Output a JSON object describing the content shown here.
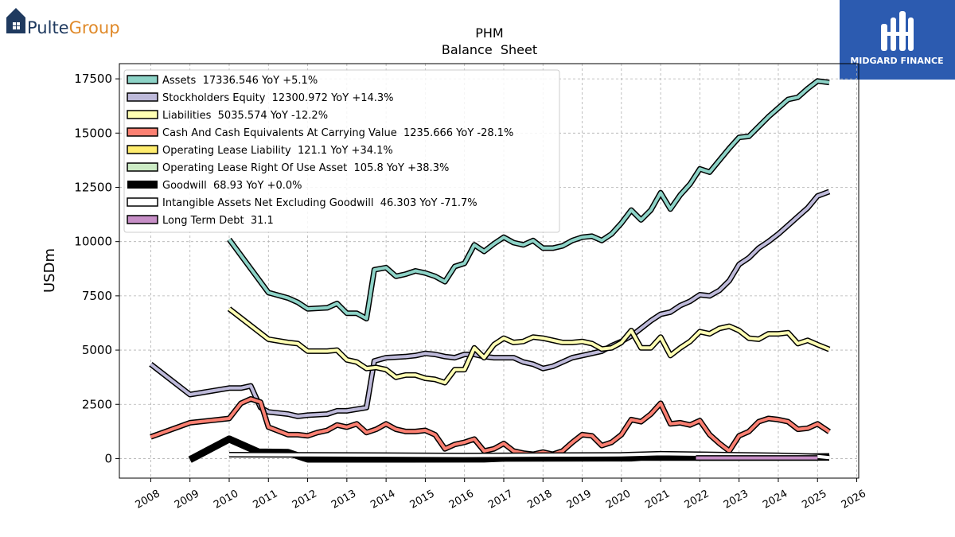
{
  "branding": {
    "left_logo_text_a": "Pulte",
    "left_logo_text_b": "Group",
    "left_logo_color_a": "#1f3a5f",
    "left_logo_color_b": "#e08a2a",
    "right_logo_text": "MIDGARD FINANCE",
    "right_logo_bg": "#2c5bb0"
  },
  "chart_data": {
    "type": "line",
    "title": "PHM",
    "subtitle": "Balance  Sheet",
    "ylabel": "USDm",
    "xlabel": "",
    "xlim": [
      2007.2,
      2026.05
    ],
    "ylim": [
      -900,
      18200
    ],
    "xticks": [
      2008,
      2009,
      2010,
      2011,
      2012,
      2013,
      2014,
      2015,
      2016,
      2017,
      2018,
      2019,
      2020,
      2021,
      2022,
      2023,
      2024,
      2025,
      2026
    ],
    "yticks": [
      0,
      2500,
      5000,
      7500,
      10000,
      12500,
      15000,
      17500
    ],
    "grid": true,
    "legend_position": "top-left",
    "series": [
      {
        "name": "Assets",
        "legend": "Assets  17336.546 YoY +5.1%",
        "color": "#8dd3c7",
        "points": [
          [
            2010,
            10100
          ],
          [
            2011,
            7650
          ],
          [
            2011.5,
            7400
          ],
          [
            2011.75,
            7200
          ],
          [
            2012,
            6900
          ],
          [
            2012.5,
            6950
          ],
          [
            2012.75,
            7150
          ],
          [
            2013,
            6700
          ],
          [
            2013.25,
            6700
          ],
          [
            2013.5,
            6450
          ],
          [
            2013.7,
            8700
          ],
          [
            2014,
            8800
          ],
          [
            2014.25,
            8400
          ],
          [
            2014.5,
            8500
          ],
          [
            2014.75,
            8650
          ],
          [
            2015,
            8550
          ],
          [
            2015.25,
            8400
          ],
          [
            2015.5,
            8150
          ],
          [
            2015.75,
            8850
          ],
          [
            2016,
            9000
          ],
          [
            2016.25,
            9850
          ],
          [
            2016.5,
            9550
          ],
          [
            2016.75,
            9900
          ],
          [
            2017,
            10200
          ],
          [
            2017.25,
            9950
          ],
          [
            2017.5,
            9850
          ],
          [
            2017.75,
            10050
          ],
          [
            2018,
            9700
          ],
          [
            2018.25,
            9700
          ],
          [
            2018.5,
            9800
          ],
          [
            2018.75,
            10050
          ],
          [
            2019,
            10200
          ],
          [
            2019.25,
            10250
          ],
          [
            2019.5,
            10050
          ],
          [
            2019.75,
            10350
          ],
          [
            2020,
            10850
          ],
          [
            2020.25,
            11450
          ],
          [
            2020.5,
            11000
          ],
          [
            2020.75,
            11450
          ],
          [
            2021,
            12250
          ],
          [
            2021.25,
            11500
          ],
          [
            2021.5,
            12150
          ],
          [
            2021.75,
            12650
          ],
          [
            2022,
            13350
          ],
          [
            2022.25,
            13200
          ],
          [
            2022.5,
            13750
          ],
          [
            2022.75,
            14300
          ],
          [
            2023,
            14800
          ],
          [
            2023.25,
            14850
          ],
          [
            2023.5,
            15300
          ],
          [
            2023.75,
            15750
          ],
          [
            2024,
            16150
          ],
          [
            2024.25,
            16550
          ],
          [
            2024.5,
            16650
          ],
          [
            2024.75,
            17050
          ],
          [
            2025,
            17400
          ],
          [
            2025.3,
            17336.546
          ]
        ]
      },
      {
        "name": "Stockholders Equity",
        "legend": "Stockholders Equity  12300.972 YoY +14.3%",
        "color": "#bebada",
        "points": [
          [
            2008,
            4350
          ],
          [
            2009,
            2950
          ],
          [
            2009.5,
            3100
          ],
          [
            2010,
            3250
          ],
          [
            2010.3,
            3250
          ],
          [
            2010.55,
            3350
          ],
          [
            2010.8,
            2350
          ],
          [
            2011,
            2150
          ],
          [
            2011.5,
            2050
          ],
          [
            2011.75,
            1950
          ],
          [
            2012,
            2000
          ],
          [
            2012.5,
            2050
          ],
          [
            2012.75,
            2200
          ],
          [
            2013,
            2200
          ],
          [
            2013.5,
            2350
          ],
          [
            2013.7,
            4500
          ],
          [
            2014,
            4650
          ],
          [
            2014.5,
            4700
          ],
          [
            2014.75,
            4750
          ],
          [
            2015,
            4850
          ],
          [
            2015.25,
            4800
          ],
          [
            2015.5,
            4700
          ],
          [
            2015.75,
            4650
          ],
          [
            2016,
            4800
          ],
          [
            2016.25,
            4800
          ],
          [
            2016.5,
            4700
          ],
          [
            2016.75,
            4650
          ],
          [
            2017,
            4650
          ],
          [
            2017.25,
            4650
          ],
          [
            2017.5,
            4450
          ],
          [
            2017.75,
            4350
          ],
          [
            2018,
            4150
          ],
          [
            2018.25,
            4250
          ],
          [
            2018.5,
            4450
          ],
          [
            2018.75,
            4650
          ],
          [
            2019,
            4750
          ],
          [
            2019.5,
            4950
          ],
          [
            2019.75,
            5200
          ],
          [
            2020,
            5400
          ],
          [
            2020.25,
            5650
          ],
          [
            2020.5,
            6000
          ],
          [
            2020.75,
            6350
          ],
          [
            2021,
            6650
          ],
          [
            2021.25,
            6750
          ],
          [
            2021.5,
            7050
          ],
          [
            2021.75,
            7250
          ],
          [
            2022,
            7550
          ],
          [
            2022.25,
            7500
          ],
          [
            2022.5,
            7750
          ],
          [
            2022.75,
            8200
          ],
          [
            2023,
            8950
          ],
          [
            2023.25,
            9250
          ],
          [
            2023.5,
            9700
          ],
          [
            2023.75,
            10000
          ],
          [
            2024,
            10350
          ],
          [
            2024.25,
            10750
          ],
          [
            2024.5,
            11150
          ],
          [
            2024.75,
            11550
          ],
          [
            2025,
            12100
          ],
          [
            2025.3,
            12300.972
          ]
        ]
      },
      {
        "name": "Liabilities",
        "legend": "Liabilities  5035.574 YoY -12.2%",
        "color": "#ffffb3",
        "points": [
          [
            2010,
            6900
          ],
          [
            2011,
            5500
          ],
          [
            2011.5,
            5350
          ],
          [
            2011.75,
            5300
          ],
          [
            2012,
            4950
          ],
          [
            2012.5,
            4950
          ],
          [
            2012.75,
            5000
          ],
          [
            2013,
            4550
          ],
          [
            2013.25,
            4450
          ],
          [
            2013.5,
            4150
          ],
          [
            2013.75,
            4200
          ],
          [
            2014,
            4100
          ],
          [
            2014.25,
            3750
          ],
          [
            2014.5,
            3850
          ],
          [
            2014.75,
            3850
          ],
          [
            2015,
            3700
          ],
          [
            2015.25,
            3650
          ],
          [
            2015.5,
            3500
          ],
          [
            2015.75,
            4100
          ],
          [
            2016,
            4100
          ],
          [
            2016.25,
            5100
          ],
          [
            2016.5,
            4650
          ],
          [
            2016.75,
            5250
          ],
          [
            2017,
            5550
          ],
          [
            2017.25,
            5350
          ],
          [
            2017.5,
            5400
          ],
          [
            2017.75,
            5600
          ],
          [
            2018,
            5550
          ],
          [
            2018.25,
            5450
          ],
          [
            2018.5,
            5350
          ],
          [
            2018.75,
            5350
          ],
          [
            2019,
            5400
          ],
          [
            2019.25,
            5300
          ],
          [
            2019.5,
            5050
          ],
          [
            2019.75,
            5100
          ],
          [
            2020,
            5350
          ],
          [
            2020.25,
            5900
          ],
          [
            2020.5,
            5100
          ],
          [
            2020.75,
            5100
          ],
          [
            2021,
            5600
          ],
          [
            2021.25,
            4750
          ],
          [
            2021.5,
            5100
          ],
          [
            2021.75,
            5400
          ],
          [
            2022,
            5850
          ],
          [
            2022.25,
            5750
          ],
          [
            2022.5,
            6000
          ],
          [
            2022.75,
            6100
          ],
          [
            2023,
            5900
          ],
          [
            2023.25,
            5550
          ],
          [
            2023.5,
            5500
          ],
          [
            2023.75,
            5750
          ],
          [
            2024,
            5750
          ],
          [
            2024.25,
            5800
          ],
          [
            2024.5,
            5300
          ],
          [
            2024.75,
            5450
          ],
          [
            2025,
            5250
          ],
          [
            2025.3,
            5035.574
          ]
        ]
      },
      {
        "name": "Cash And Cash Equivalents At Carrying Value",
        "legend": "Cash And Cash Equivalents At Carrying Value  1235.666 YoY -28.1%",
        "color": "#fb8072",
        "points": [
          [
            2008,
            1000
          ],
          [
            2009,
            1650
          ],
          [
            2009.5,
            1750
          ],
          [
            2010,
            1850
          ],
          [
            2010.3,
            2550
          ],
          [
            2010.55,
            2750
          ],
          [
            2010.8,
            2600
          ],
          [
            2011,
            1450
          ],
          [
            2011.5,
            1100
          ],
          [
            2011.75,
            1100
          ],
          [
            2012,
            1050
          ],
          [
            2012.25,
            1200
          ],
          [
            2012.5,
            1300
          ],
          [
            2012.75,
            1550
          ],
          [
            2013,
            1450
          ],
          [
            2013.25,
            1600
          ],
          [
            2013.5,
            1200
          ],
          [
            2013.75,
            1350
          ],
          [
            2014,
            1600
          ],
          [
            2014.25,
            1350
          ],
          [
            2014.5,
            1250
          ],
          [
            2014.75,
            1250
          ],
          [
            2015,
            1300
          ],
          [
            2015.25,
            1100
          ],
          [
            2015.5,
            450
          ],
          [
            2015.75,
            650
          ],
          [
            2016,
            750
          ],
          [
            2016.25,
            900
          ],
          [
            2016.5,
            350
          ],
          [
            2016.75,
            450
          ],
          [
            2017,
            700
          ],
          [
            2017.25,
            350
          ],
          [
            2017.5,
            250
          ],
          [
            2017.75,
            200
          ],
          [
            2018,
            300
          ],
          [
            2018.25,
            200
          ],
          [
            2018.5,
            350
          ],
          [
            2018.75,
            750
          ],
          [
            2019,
            1100
          ],
          [
            2019.25,
            1050
          ],
          [
            2019.5,
            600
          ],
          [
            2019.75,
            750
          ],
          [
            2020,
            1100
          ],
          [
            2020.25,
            1800
          ],
          [
            2020.5,
            1700
          ],
          [
            2020.75,
            2050
          ],
          [
            2021,
            2550
          ],
          [
            2021.25,
            1600
          ],
          [
            2021.5,
            1650
          ],
          [
            2021.75,
            1550
          ],
          [
            2022,
            1750
          ],
          [
            2022.25,
            1100
          ],
          [
            2022.5,
            700
          ],
          [
            2022.75,
            350
          ],
          [
            2023,
            1050
          ],
          [
            2023.25,
            1250
          ],
          [
            2023.5,
            1700
          ],
          [
            2023.75,
            1850
          ],
          [
            2024,
            1800
          ],
          [
            2024.25,
            1700
          ],
          [
            2024.5,
            1350
          ],
          [
            2024.75,
            1400
          ],
          [
            2025,
            1600
          ],
          [
            2025.3,
            1235.666
          ]
        ]
      },
      {
        "name": "Operating Lease Liability",
        "legend": "Operating Lease Liability  121.1 YoY +34.1%",
        "color": "#ffed6f",
        "points": [
          [
            2019,
            60
          ],
          [
            2020,
            65
          ],
          [
            2021,
            70
          ],
          [
            2022,
            75
          ],
          [
            2023,
            80
          ],
          [
            2024,
            100
          ],
          [
            2025,
            115
          ],
          [
            2025.3,
            121.1
          ]
        ]
      },
      {
        "name": "Operating Lease Right Of Use Asset",
        "legend": "Operating Lease Right Of Use Asset  105.8 YoY +38.3%",
        "color": "#ccebc5",
        "points": [
          [
            2019,
            55
          ],
          [
            2020,
            60
          ],
          [
            2021,
            65
          ],
          [
            2022,
            70
          ],
          [
            2023,
            75
          ],
          [
            2024,
            90
          ],
          [
            2025,
            100
          ],
          [
            2025.3,
            105.8
          ]
        ]
      },
      {
        "name": "Goodwill",
        "legend": "Goodwill  68.93 YoY +0.0%",
        "color": "#000000",
        "points": [
          [
            2009,
            -50
          ],
          [
            2010,
            900
          ],
          [
            2010.75,
            300
          ],
          [
            2011.5,
            280
          ],
          [
            2012,
            -20
          ],
          [
            2014,
            -20
          ],
          [
            2016.5,
            -15
          ],
          [
            2017,
            20
          ],
          [
            2020.25,
            30
          ],
          [
            2020.5,
            60
          ],
          [
            2025.3,
            68.93
          ]
        ]
      },
      {
        "name": "Intangible Assets Net Excluding Goodwill",
        "legend": "Intangible Assets Net Excluding Goodwill  46.303 YoY -71.7%",
        "color": "#ffffff",
        "points": [
          [
            2010,
            180
          ],
          [
            2012,
            170
          ],
          [
            2014,
            160
          ],
          [
            2016,
            140
          ],
          [
            2018,
            160
          ],
          [
            2020,
            170
          ],
          [
            2021,
            220
          ],
          [
            2022,
            200
          ],
          [
            2023,
            170
          ],
          [
            2024,
            150
          ],
          [
            2025,
            100
          ],
          [
            2025.3,
            46.303
          ]
        ]
      },
      {
        "name": "Long Term Debt",
        "legend": "Long Term Debt  31.1",
        "color": "#c78fc7",
        "points": [
          [
            2021.9,
            31.1
          ],
          [
            2025,
            31.1
          ]
        ]
      }
    ]
  }
}
